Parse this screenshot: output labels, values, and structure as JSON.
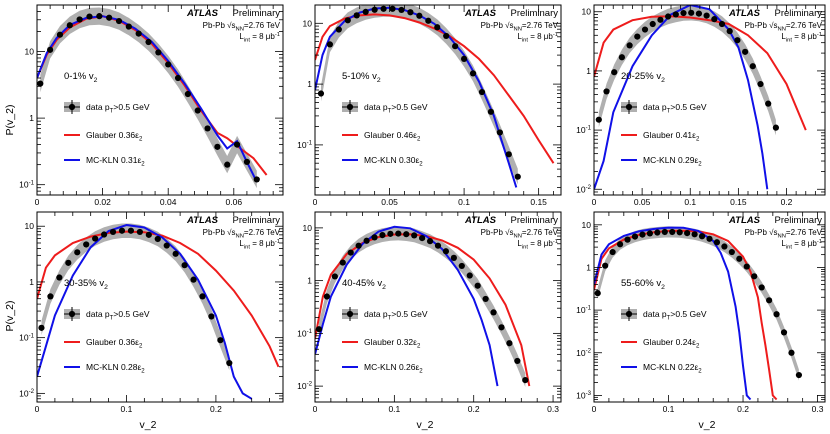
{
  "figure": {
    "experiment": "ATLAS",
    "status": "Preliminary",
    "system_line": "Pb-Pb √s_NN=2.76 TeV",
    "lumi_line": "L_int = 8 μb^-1",
    "y_axis_label": "P(v_2)",
    "x_axis_label": "v_2",
    "legend_data": "data p_T>0.5 GeV",
    "colors": {
      "data": "#000000",
      "band": "#b0b0b0",
      "glauber": "#ee1c1c",
      "mckln": "#1010e8"
    }
  },
  "chart_data": [
    {
      "type": "line",
      "title": "0-1% v_2",
      "xlabel": "v_2",
      "ylabel": "P(v_2)",
      "yscale": "log",
      "xlim": [
        0,
        0.075
      ],
      "ylim": [
        0.07,
        50
      ],
      "xticks": [
        0,
        0.02,
        0.04,
        0.06
      ],
      "xticklabels": [
        "0",
        "0.02",
        "0.04",
        "0.06"
      ],
      "yticks": [
        0.1,
        1,
        10
      ],
      "yticklabels": [
        "10^-1",
        "1",
        "10"
      ],
      "legend": [
        "data p_T>0.5 GeV",
        "Glauber 0.36ε_2",
        "MC-KLN 0.31ε_2"
      ],
      "series": [
        {
          "name": "data",
          "x": [
            0.001,
            0.004,
            0.007,
            0.01,
            0.013,
            0.016,
            0.019,
            0.022,
            0.025,
            0.028,
            0.031,
            0.034,
            0.037,
            0.04,
            0.043,
            0.046,
            0.049,
            0.052,
            0.055,
            0.058,
            0.061,
            0.064,
            0.067
          ],
          "y": [
            3.3,
            10.6,
            17.9,
            24.8,
            30.3,
            33.5,
            34.0,
            32.2,
            28.7,
            23.7,
            18.6,
            13.9,
            9.7,
            6.4,
            4.0,
            2.3,
            1.3,
            0.7,
            0.37,
            0.2,
            0.4,
            0.22,
            0.12
          ]
        },
        {
          "name": "Glauber 0.36ε_2",
          "x": [
            0,
            0.003,
            0.006,
            0.01,
            0.015,
            0.02,
            0.025,
            0.03,
            0.035,
            0.04,
            0.045,
            0.05,
            0.055,
            0.058,
            0.062,
            0.066,
            0.07
          ],
          "y": [
            4,
            9,
            15,
            23,
            31,
            34,
            29,
            21,
            13,
            6.7,
            3.1,
            1.3,
            0.6,
            0.5,
            0.35,
            0.25,
            0.14
          ]
        },
        {
          "name": "MC-KLN 0.31ε_2",
          "x": [
            0,
            0.003,
            0.006,
            0.01,
            0.015,
            0.02,
            0.025,
            0.03,
            0.035,
            0.04,
            0.045,
            0.05,
            0.055,
            0.058,
            0.061,
            0.064,
            0.067
          ],
          "y": [
            4,
            9.5,
            16,
            25,
            32,
            34,
            30,
            22,
            14,
            7.2,
            3.3,
            1.4,
            0.55,
            0.35,
            0.45,
            0.22,
            0.11
          ]
        }
      ]
    },
    {
      "type": "line",
      "title": "5-10% v_2",
      "xlabel": "v_2",
      "ylabel": "P(v_2)",
      "yscale": "log",
      "xlim": [
        0,
        0.165
      ],
      "ylim": [
        0.015,
        20
      ],
      "xticks": [
        0,
        0.05,
        0.1,
        0.15
      ],
      "xticklabels": [
        "0",
        "0.05",
        "0.1",
        "0.15"
      ],
      "yticks": [
        0.1,
        1,
        10
      ],
      "yticklabels": [
        "10^-1",
        "1",
        "10"
      ],
      "legend": [
        "data p_T>0.5 GeV",
        "Glauber 0.46ε_2",
        "MC-KLN 0.30ε_2"
      ],
      "series": [
        {
          "name": "data",
          "x": [
            0.004,
            0.01,
            0.016,
            0.022,
            0.028,
            0.034,
            0.04,
            0.046,
            0.052,
            0.058,
            0.064,
            0.07,
            0.076,
            0.082,
            0.088,
            0.094,
            0.1,
            0.106,
            0.112,
            0.118,
            0.124,
            0.13,
            0.136
          ],
          "y": [
            0.7,
            4.5,
            7.9,
            11.2,
            13.5,
            15.4,
            16.7,
            17.3,
            17.3,
            16.6,
            15.2,
            13.3,
            11.0,
            8.6,
            6.2,
            4.2,
            2.6,
            1.5,
            0.74,
            0.35,
            0.16,
            0.07,
            0.03
          ]
        },
        {
          "name": "Glauber 0.46ε_2",
          "x": [
            0,
            0.005,
            0.01,
            0.02,
            0.03,
            0.04,
            0.05,
            0.06,
            0.07,
            0.08,
            0.09,
            0.1,
            0.11,
            0.12,
            0.13,
            0.14,
            0.15,
            0.16
          ],
          "y": [
            2.5,
            6,
            9,
            12,
            13.5,
            14,
            13.5,
            12.2,
            10.3,
            8.2,
            6.2,
            4.2,
            2.6,
            1.4,
            0.65,
            0.3,
            0.12,
            0.05
          ]
        },
        {
          "name": "MC-KLN 0.30ε_2",
          "x": [
            0,
            0.005,
            0.01,
            0.02,
            0.03,
            0.04,
            0.05,
            0.06,
            0.07,
            0.08,
            0.09,
            0.1,
            0.11,
            0.12,
            0.125,
            0.13,
            0.135
          ],
          "y": [
            0.8,
            3,
            6,
            11,
            15,
            17.5,
            18,
            16.5,
            13.5,
            9.8,
            6,
            3,
            1.1,
            0.3,
            0.12,
            0.05,
            0.02
          ]
        }
      ]
    },
    {
      "type": "line",
      "title": "20-25% v_2",
      "xlabel": "v_2",
      "ylabel": "P(v_2)",
      "yscale": "log",
      "xlim": [
        0,
        0.24
      ],
      "ylim": [
        0.008,
        13
      ],
      "xticks": [
        0,
        0.05,
        0.1,
        0.15,
        0.2
      ],
      "xticklabels": [
        "0",
        "0.05",
        "0.1",
        "0.15",
        "0.2"
      ],
      "yticks": [
        0.01,
        0.1,
        1,
        10
      ],
      "yticklabels": [
        "10^-2",
        "10^-1",
        "1",
        "10"
      ],
      "legend": [
        "data p_T>0.5 GeV",
        "Glauber 0.41ε_2",
        "MC-KLN 0.29ε_2"
      ],
      "series": [
        {
          "name": "data",
          "x": [
            0.005,
            0.013,
            0.021,
            0.029,
            0.037,
            0.045,
            0.053,
            0.061,
            0.069,
            0.077,
            0.085,
            0.093,
            0.101,
            0.109,
            0.117,
            0.125,
            0.133,
            0.141,
            0.149,
            0.157,
            0.165,
            0.173,
            0.181,
            0.189
          ],
          "y": [
            0.15,
            0.45,
            0.95,
            1.7,
            2.7,
            3.8,
            5.0,
            6.2,
            7.3,
            8.3,
            9.0,
            9.5,
            9.6,
            9.3,
            8.6,
            7.5,
            6.2,
            4.7,
            3.3,
            2.1,
            1.2,
            0.6,
            0.28,
            0.11
          ]
        },
        {
          "name": "Glauber 0.41ε_2",
          "x": [
            0,
            0.01,
            0.02,
            0.04,
            0.06,
            0.08,
            0.1,
            0.12,
            0.14,
            0.16,
            0.18,
            0.2,
            0.22
          ],
          "y": [
            0.8,
            3,
            5,
            7.2,
            8.2,
            8.4,
            8,
            7.2,
            6.2,
            4,
            2,
            0.6,
            0.1
          ]
        },
        {
          "name": "MC-KLN 0.29ε_2",
          "x": [
            0,
            0.01,
            0.02,
            0.04,
            0.06,
            0.08,
            0.1,
            0.12,
            0.14,
            0.15,
            0.16,
            0.17,
            0.175,
            0.18
          ],
          "y": [
            0.01,
            0.03,
            0.2,
            1.2,
            4,
            9,
            13,
            11,
            5,
            2.5,
            0.7,
            0.12,
            0.04,
            0.01
          ]
        }
      ]
    },
    {
      "type": "line",
      "title": "30-35% v_2",
      "xlabel": "v_2",
      "ylabel": "P(v_2)",
      "yscale": "log",
      "xlim": [
        0,
        0.275
      ],
      "ylim": [
        0.007,
        18
      ],
      "xticks": [
        0,
        0.1,
        0.2
      ],
      "xticklabels": [
        "0",
        "0.1",
        "0.2"
      ],
      "yticks": [
        0.01,
        0.1,
        1,
        10
      ],
      "yticklabels": [
        "10^-2",
        "10^-1",
        "1",
        "10"
      ],
      "legend": [
        "data p_T>0.5 GeV",
        "Glauber 0.36ε_2",
        "MC-KLN 0.28ε_2"
      ],
      "series": [
        {
          "name": "data",
          "x": [
            0.005,
            0.015,
            0.025,
            0.035,
            0.045,
            0.055,
            0.065,
            0.075,
            0.085,
            0.095,
            0.105,
            0.115,
            0.125,
            0.135,
            0.145,
            0.155,
            0.165,
            0.175,
            0.185,
            0.195,
            0.205,
            0.215
          ],
          "y": [
            0.15,
            0.55,
            1.2,
            2.2,
            3.4,
            4.7,
            6.0,
            7.1,
            7.9,
            8.3,
            8.3,
            7.9,
            7.0,
            5.9,
            4.5,
            3.2,
            2.0,
            1.1,
            0.55,
            0.24,
            0.09,
            0.035
          ]
        },
        {
          "name": "Glauber 0.36ε_2",
          "x": [
            0,
            0.01,
            0.02,
            0.04,
            0.06,
            0.08,
            0.1,
            0.12,
            0.14,
            0.16,
            0.18,
            0.2,
            0.22,
            0.24,
            0.26,
            0.27
          ],
          "y": [
            0.5,
            1.8,
            3,
            5,
            6.5,
            7.6,
            8,
            7.8,
            6.8,
            5,
            3.2,
            1.6,
            0.7,
            0.25,
            0.07,
            0.03
          ]
        },
        {
          "name": "MC-KLN 0.28ε_2",
          "x": [
            0,
            0.01,
            0.02,
            0.04,
            0.06,
            0.08,
            0.1,
            0.12,
            0.14,
            0.16,
            0.18,
            0.2,
            0.21,
            0.22,
            0.23,
            0.24
          ],
          "y": [
            0.02,
            0.07,
            0.25,
            1.3,
            4.2,
            8.2,
            10.5,
            9.5,
            6.3,
            3.2,
            1.1,
            0.25,
            0.08,
            0.02,
            0.01,
            0.008
          ]
        }
      ]
    },
    {
      "type": "line",
      "title": "40-45% v_2",
      "xlabel": "v_2",
      "ylabel": "P(v_2)",
      "yscale": "log",
      "xlim": [
        0,
        0.31
      ],
      "ylim": [
        0.005,
        20
      ],
      "xticks": [
        0,
        0.1,
        0.2,
        0.3
      ],
      "xticklabels": [
        "0",
        "0.1",
        "0.2",
        "0.3"
      ],
      "yticks": [
        0.01,
        0.1,
        1,
        10
      ],
      "yticklabels": [
        "10^-2",
        "10^-1",
        "1",
        "10"
      ],
      "legend": [
        "data p_T>0.5 GeV",
        "Glauber 0.32ε_2",
        "MC-KLN 0.26ε_2"
      ],
      "series": [
        {
          "name": "data",
          "x": [
            0.005,
            0.015,
            0.025,
            0.035,
            0.045,
            0.055,
            0.065,
            0.075,
            0.085,
            0.095,
            0.105,
            0.115,
            0.125,
            0.135,
            0.145,
            0.155,
            0.165,
            0.175,
            0.185,
            0.195,
            0.205,
            0.215,
            0.225,
            0.235,
            0.245,
            0.255,
            0.265
          ],
          "y": [
            0.12,
            0.5,
            1.2,
            2.2,
            3.4,
            4.6,
            5.7,
            6.6,
            7.3,
            7.7,
            7.8,
            7.6,
            7.2,
            6.4,
            5.6,
            4.6,
            3.6,
            2.7,
            1.9,
            1.25,
            0.8,
            0.45,
            0.25,
            0.13,
            0.065,
            0.03,
            0.013
          ]
        },
        {
          "name": "Glauber 0.32ε_2",
          "x": [
            0,
            0.01,
            0.02,
            0.04,
            0.06,
            0.08,
            0.1,
            0.12,
            0.14,
            0.16,
            0.18,
            0.2,
            0.22,
            0.24,
            0.26,
            0.27
          ],
          "y": [
            0.08,
            0.5,
            1.3,
            3.2,
            5.2,
            6.7,
            7.5,
            7.6,
            7,
            5.8,
            4.2,
            2.5,
            1.1,
            0.35,
            0.06,
            0.01
          ]
        },
        {
          "name": "MC-KLN 0.26ε_2",
          "x": [
            0,
            0.01,
            0.02,
            0.04,
            0.06,
            0.08,
            0.1,
            0.12,
            0.14,
            0.16,
            0.18,
            0.2,
            0.21,
            0.22,
            0.23
          ],
          "y": [
            0.04,
            0.15,
            0.5,
            2,
            5,
            8.5,
            10.5,
            9.8,
            7,
            4,
            1.6,
            0.45,
            0.18,
            0.06,
            0.01
          ]
        }
      ]
    },
    {
      "type": "line",
      "title": "55-60% v_2",
      "xlabel": "v_2",
      "ylabel": "P(v_2)",
      "yscale": "log",
      "xlim": [
        0,
        0.31
      ],
      "ylim": [
        0.0007,
        20
      ],
      "xticks": [
        0,
        0.1,
        0.2,
        0.3
      ],
      "xticklabels": [
        "0",
        "0.1",
        "0.2",
        "0.3"
      ],
      "yticks": [
        0.001,
        0.01,
        0.1,
        1,
        10
      ],
      "yticklabels": [
        "10^-3",
        "10^-2",
        "10^-1",
        "1",
        "10"
      ],
      "legend": [
        "data p_T>0.5 GeV",
        "Glauber 0.24ε_2",
        "MC-KLN 0.22ε_2"
      ],
      "series": [
        {
          "name": "data",
          "x": [
            0.005,
            0.015,
            0.025,
            0.035,
            0.045,
            0.055,
            0.065,
            0.075,
            0.085,
            0.095,
            0.105,
            0.115,
            0.125,
            0.135,
            0.145,
            0.155,
            0.165,
            0.175,
            0.185,
            0.195,
            0.205,
            0.215,
            0.225,
            0.235,
            0.245,
            0.255,
            0.265,
            0.275
          ],
          "y": [
            0.25,
            1.1,
            2.3,
            3.5,
            4.5,
            5.3,
            5.9,
            6.3,
            6.6,
            6.8,
            6.8,
            6.7,
            6.4,
            6.0,
            5.4,
            4.7,
            3.9,
            3.1,
            2.3,
            1.6,
            1.05,
            0.62,
            0.34,
            0.17,
            0.08,
            0.03,
            0.01,
            0.003
          ]
        },
        {
          "name": "Glauber 0.24ε_2",
          "x": [
            0,
            0.01,
            0.02,
            0.04,
            0.06,
            0.08,
            0.1,
            0.12,
            0.14,
            0.16,
            0.18,
            0.2,
            0.21,
            0.22,
            0.225,
            0.23,
            0.235,
            0.24,
            0.245
          ],
          "y": [
            0.3,
            1.6,
            2.8,
            4.5,
            5.8,
            6.7,
            7.2,
            7.3,
            7,
            6,
            4.2,
            1.8,
            0.8,
            0.2,
            0.05,
            0.015,
            0.004,
            0.001,
            0.0008
          ]
        },
        {
          "name": "MC-KLN 0.22ε_2",
          "x": [
            0,
            0.01,
            0.02,
            0.04,
            0.06,
            0.08,
            0.1,
            0.12,
            0.14,
            0.16,
            0.17,
            0.18,
            0.19,
            0.195,
            0.2,
            0.205,
            0.21
          ],
          "y": [
            0.4,
            2,
            3.5,
            5.5,
            7,
            8,
            8.6,
            8.5,
            7.2,
            4.2,
            2.2,
            0.8,
            0.12,
            0.03,
            0.005,
            0.001,
            0.0008
          ]
        }
      ]
    }
  ]
}
